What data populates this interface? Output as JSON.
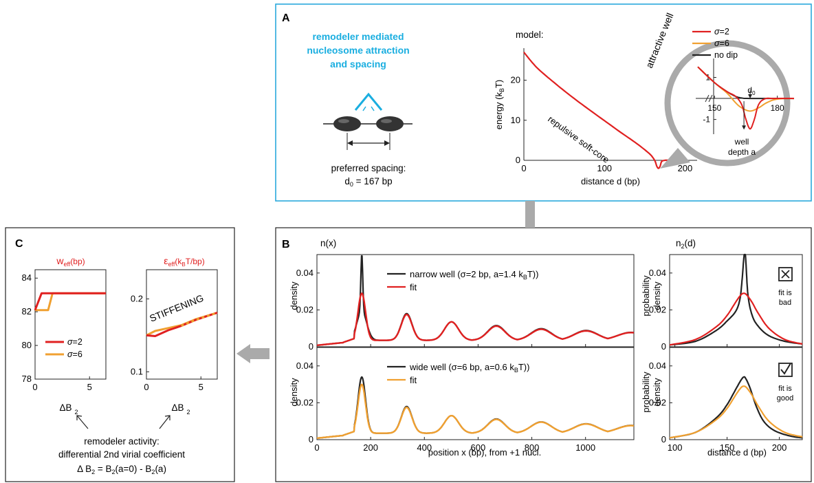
{
  "colors": {
    "red": "#e02020",
    "orange": "#f0a030",
    "black": "#222222",
    "cyan": "#1aaee0",
    "grey": "#aaaaaa",
    "box_blue": "#29a8dc"
  },
  "panelA": {
    "letter": "A",
    "title_lines": [
      "remodeler mediated",
      "nucleosome attraction",
      "and spacing"
    ],
    "spacing_label": "preferred spacing:",
    "spacing_value": "d",
    "spacing_sub": "0",
    "spacing_rest": " = 167 bp",
    "model_label": "model:",
    "curve_label": "repulsive soft-core",
    "inset_title": "attractive well",
    "well_label_1": "well",
    "well_label_2": "depth a",
    "d0_label": "d",
    "d0_sub": "0"
  },
  "panelB": {
    "letter": "B",
    "nx_title": "n(x)",
    "n2_title_main": "n",
    "n2_title_sub": "2",
    "n2_title_rest": "(d)",
    "ylabel_density": "density",
    "ylabel_prob_1": "probability",
    "ylabel_prob_2": "density",
    "xlabel_pos": "position x (bp), from +1 nucl.",
    "xlabel_dist": "distance d (bp)",
    "top_legend": [
      "narrow well (σ=2 bp, a=1.4 k",
      "fit"
    ],
    "top_legend_tail": "T))",
    "bot_legend": [
      "wide well (σ=6 bp, a=0.6 k",
      "fit"
    ],
    "bot_legend_tail": "T))",
    "bad_text_1": "fit is",
    "bad_text_2": "bad",
    "good_text_1": "fit is",
    "good_text_2": "good",
    "k_sub": "B"
  },
  "panelC": {
    "letter": "C",
    "w_title": "w",
    "w_sub": "eff",
    "w_unit": "(bp)",
    "e_title": "ε",
    "e_sub": "eff",
    "e_unit_1": "(k",
    "e_unit_sub": "B",
    "e_unit_2": "T/bp)",
    "stiff": "STIFFENING",
    "xlabel": "ΔB",
    "xlabel_sub": "2",
    "caption_1": "remodeler activity:",
    "caption_2": "differential 2nd virial coefficient",
    "caption_3a": "Δ B",
    "caption_3b": " =  B",
    "caption_3c": "(a=0) - B",
    "caption_3d": "(a)",
    "caption_sub": "2"
  },
  "chart_data": [
    {
      "id": "A-main",
      "type": "line",
      "xlabel": "distance d (bp)",
      "ylabel": "energy (k_BT)",
      "xlim": [
        0,
        215
      ],
      "ylim": [
        0,
        28
      ],
      "xticks": [
        0,
        100,
        200
      ],
      "yticks": [
        0,
        10,
        20
      ],
      "series": [
        {
          "x": [
            0,
            10,
            20,
            40,
            60,
            80,
            100,
            120,
            140,
            155,
            160,
            163,
            165,
            167,
            169,
            171,
            175,
            180
          ],
          "y": [
            27,
            24.5,
            22.4,
            19,
            15.8,
            12.8,
            9.9,
            7.0,
            4.2,
            1.8,
            0.7,
            -0.3,
            -1.5,
            -2.0,
            -1.5,
            -0.3,
            0,
            0
          ]
        }
      ]
    },
    {
      "id": "A-inset",
      "type": "line",
      "xlim": [
        142,
        188
      ],
      "ylim": [
        -1.7,
        1.9
      ],
      "xticks": [
        150,
        180
      ],
      "yticks": [
        1,
        -1
      ],
      "series": [
        {
          "name": "σ=2",
          "x": [
            142,
            150,
            156,
            160,
            163,
            165,
            167,
            169,
            171,
            174,
            178,
            188
          ],
          "y": [
            1.5,
            0.75,
            0.32,
            0.1,
            -0.3,
            -1.0,
            -1.45,
            -1.0,
            -0.3,
            -0.02,
            0,
            0
          ]
        },
        {
          "name": "σ=6",
          "x": [
            142,
            150,
            156,
            160,
            163,
            167,
            171,
            175,
            180,
            188
          ],
          "y": [
            1.5,
            0.75,
            0.25,
            -0.2,
            -0.45,
            -0.6,
            -0.45,
            -0.2,
            -0.03,
            0
          ]
        },
        {
          "name": "no dip",
          "x": [
            142,
            150,
            156,
            160,
            163,
            167,
            188
          ],
          "y": [
            1.5,
            0.75,
            0.32,
            0.1,
            0.02,
            0,
            0
          ]
        }
      ]
    },
    {
      "id": "B-top-left",
      "type": "line",
      "xlabel": "",
      "ylabel": "density",
      "xlim": [
        0,
        1180
      ],
      "ylim": [
        0,
        0.05
      ],
      "xticks": [
        0,
        200,
        400,
        600,
        800,
        1000
      ],
      "yticks": [
        0,
        0.02,
        0.04
      ],
      "series": [
        {
          "name": "narrow well (σ=2 bp, a=1.4 kBT))",
          "peak_positions": [
            167,
            334,
            501,
            668,
            835,
            1002,
            1169
          ],
          "peak_heights": [
            0.051,
            0.018,
            0.0135,
            0.0115,
            0.0098,
            0.0088,
            0.0078
          ],
          "floor": 0.0035
        },
        {
          "name": "fit",
          "peak_positions": [
            167,
            334,
            501,
            668,
            835,
            1002,
            1169
          ],
          "peak_heights": [
            0.029,
            0.0175,
            0.0135,
            0.0112,
            0.0095,
            0.0086,
            0.0077
          ],
          "floor": 0.0035
        }
      ]
    },
    {
      "id": "B-bottom-left",
      "type": "line",
      "xlabel": "position x (bp), from +1 nucl.",
      "ylabel": "density",
      "xlim": [
        0,
        1180
      ],
      "ylim": [
        0,
        0.05
      ],
      "xticks": [
        0,
        200,
        400,
        600,
        800,
        1000
      ],
      "yticks": [
        0,
        0.02,
        0.04
      ],
      "series": [
        {
          "name": "wide well (σ=6 bp, a=0.6 kBT))",
          "peak_positions": [
            167,
            334,
            501,
            668,
            835,
            1002,
            1169
          ],
          "peak_heights": [
            0.034,
            0.018,
            0.013,
            0.0112,
            0.0096,
            0.0086,
            0.0077
          ],
          "floor": 0.0035
        },
        {
          "name": "fit",
          "peak_positions": [
            167,
            334,
            501,
            668,
            835,
            1002,
            1169
          ],
          "peak_heights": [
            0.03,
            0.0175,
            0.013,
            0.011,
            0.0095,
            0.0085,
            0.0076
          ],
          "floor": 0.0035
        }
      ]
    },
    {
      "id": "B-top-right",
      "type": "line",
      "xlabel": "",
      "ylabel": "probability density",
      "xlim": [
        95,
        222
      ],
      "ylim": [
        0,
        0.05
      ],
      "xticks": [
        100,
        150,
        200
      ],
      "yticks": [
        0,
        0.02,
        0.04
      ],
      "series": [
        {
          "x": [
            95,
            120,
            140,
            150,
            158,
            162,
            164,
            166,
            167,
            168,
            170,
            174,
            180,
            190,
            205,
            222
          ],
          "y": [
            0.001,
            0.003,
            0.009,
            0.014,
            0.019,
            0.025,
            0.034,
            0.048,
            0.052,
            0.046,
            0.028,
            0.017,
            0.011,
            0.006,
            0.003,
            0.0015
          ]
        },
        {
          "x": [
            95,
            120,
            140,
            150,
            158,
            163,
            166,
            169,
            174,
            180,
            190,
            205,
            222
          ],
          "y": [
            0.001,
            0.004,
            0.011,
            0.017,
            0.024,
            0.028,
            0.029,
            0.028,
            0.024,
            0.018,
            0.01,
            0.004,
            0.0015
          ]
        }
      ]
    },
    {
      "id": "B-bottom-right",
      "type": "line",
      "xlabel": "distance d (bp)",
      "ylabel": "probability density",
      "xlim": [
        95,
        222
      ],
      "ylim": [
        0,
        0.05
      ],
      "xticks": [
        100,
        150,
        200
      ],
      "yticks": [
        0,
        0.02,
        0.04
      ],
      "series": [
        {
          "x": [
            95,
            120,
            140,
            150,
            158,
            163,
            166,
            168,
            172,
            178,
            185,
            195,
            210,
            222
          ],
          "y": [
            0.001,
            0.004,
            0.012,
            0.019,
            0.027,
            0.032,
            0.034,
            0.033,
            0.028,
            0.018,
            0.01,
            0.005,
            0.002,
            0.001
          ]
        },
        {
          "x": [
            95,
            120,
            140,
            150,
            158,
            163,
            166,
            169,
            174,
            180,
            190,
            205,
            222
          ],
          "y": [
            0.001,
            0.004,
            0.011,
            0.017,
            0.024,
            0.028,
            0.029,
            0.028,
            0.024,
            0.018,
            0.01,
            0.004,
            0.0015
          ]
        }
      ]
    },
    {
      "id": "C-w",
      "type": "line",
      "title": "w_eff (bp)",
      "xlabel": "ΔB_2",
      "xlim": [
        0,
        6.5
      ],
      "ylim": [
        78,
        84.5
      ],
      "xticks": [
        0,
        5
      ],
      "yticks": [
        78,
        80,
        82,
        84
      ],
      "series": [
        {
          "name": "σ=2",
          "x": [
            0,
            0.6,
            6.5
          ],
          "y": [
            82.1,
            83.1,
            83.1
          ]
        },
        {
          "name": "σ=6",
          "x": [
            0,
            0.7,
            1.2,
            1.6,
            6.5
          ],
          "y": [
            82.1,
            82.1,
            82.1,
            83.1,
            83.1
          ]
        }
      ]
    },
    {
      "id": "C-eps",
      "type": "line",
      "title": "ε_eff (k_BT/bp)",
      "xlabel": "ΔB_2",
      "xlim": [
        0,
        6.5
      ],
      "ylim": [
        0.09,
        0.24
      ],
      "xticks": [
        0,
        5
      ],
      "yticks": [
        0.1,
        0.2
      ],
      "series": [
        {
          "name": "σ=2",
          "x": [
            0,
            0.8,
            2,
            3.2,
            4.5,
            6.5
          ],
          "y": [
            0.15,
            0.149,
            0.157,
            0.163,
            0.171,
            0.181
          ]
        },
        {
          "name": "σ=6",
          "x": [
            0,
            0.8,
            2,
            3.2,
            4.5,
            6.5
          ],
          "y": [
            0.15,
            0.156,
            0.16,
            0.164,
            0.172,
            0.181
          ]
        }
      ]
    }
  ]
}
